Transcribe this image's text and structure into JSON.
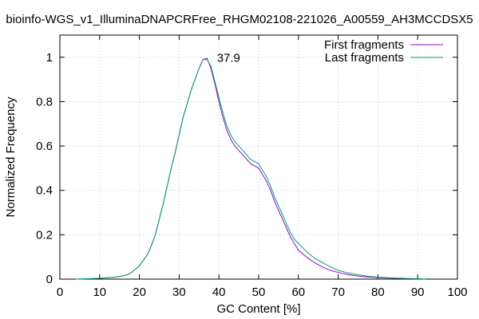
{
  "chart_data": {
    "type": "line",
    "title": "bioinfo-WGS_v1_IlluminaDNAPCRFree_RHGM02108-221026_A00559_AH3MCCDSX5",
    "xlabel": "GC Content [%]",
    "ylabel": "Normalized Frequency",
    "xlim": [
      0,
      100
    ],
    "ylim": [
      0,
      1.1
    ],
    "xticks": [
      0,
      10,
      20,
      30,
      40,
      50,
      60,
      70,
      80,
      90,
      100
    ],
    "yticks": [
      0,
      0.2,
      0.4,
      0.6,
      0.8,
      1
    ],
    "ytick_labels": [
      "0",
      "0.2",
      "0.4",
      "0.6",
      "0.8",
      "1"
    ],
    "grid": true,
    "legend_position": "top-right",
    "annotations": [
      {
        "text": "37.9",
        "x": 39.5,
        "y": 0.99
      }
    ],
    "series": [
      {
        "name": "First fragments",
        "color": "#9400d3",
        "x": [
          4,
          8,
          10,
          12,
          14,
          16,
          17,
          18,
          19,
          20,
          21,
          22,
          23,
          24,
          25,
          26,
          27,
          28,
          29,
          30,
          31,
          32,
          33,
          34,
          35,
          36,
          37,
          38,
          39,
          40,
          41,
          42,
          43,
          44,
          45,
          46,
          47,
          48,
          49,
          50,
          51,
          52,
          53,
          54,
          55,
          56,
          57,
          58,
          59,
          60,
          62,
          64,
          66,
          68,
          70,
          72,
          74,
          76,
          78,
          80,
          82,
          84,
          86,
          88,
          90,
          92
        ],
        "y": [
          0,
          0.002,
          0.004,
          0.006,
          0.009,
          0.015,
          0.02,
          0.03,
          0.045,
          0.06,
          0.085,
          0.11,
          0.15,
          0.2,
          0.27,
          0.34,
          0.42,
          0.5,
          0.57,
          0.65,
          0.73,
          0.79,
          0.85,
          0.9,
          0.95,
          0.99,
          0.995,
          0.95,
          0.88,
          0.8,
          0.73,
          0.67,
          0.63,
          0.6,
          0.58,
          0.56,
          0.54,
          0.52,
          0.51,
          0.5,
          0.47,
          0.44,
          0.4,
          0.35,
          0.31,
          0.27,
          0.23,
          0.19,
          0.16,
          0.13,
          0.1,
          0.075,
          0.055,
          0.04,
          0.03,
          0.022,
          0.016,
          0.012,
          0.009,
          0.007,
          0.005,
          0.004,
          0.003,
          0.002,
          0.001,
          0
        ]
      },
      {
        "name": "Last fragments",
        "color": "#009e73",
        "x": [
          4,
          8,
          10,
          12,
          14,
          16,
          17,
          18,
          19,
          20,
          21,
          22,
          23,
          24,
          25,
          26,
          27,
          28,
          29,
          30,
          31,
          32,
          33,
          34,
          35,
          36,
          37,
          38,
          39,
          40,
          41,
          42,
          43,
          44,
          45,
          46,
          47,
          48,
          49,
          50,
          51,
          52,
          53,
          54,
          55,
          56,
          57,
          58,
          59,
          60,
          62,
          64,
          66,
          68,
          70,
          72,
          74,
          76,
          78,
          80,
          82,
          84,
          86,
          88,
          90,
          92
        ],
        "y": [
          0,
          0.002,
          0.004,
          0.006,
          0.009,
          0.015,
          0.02,
          0.03,
          0.045,
          0.06,
          0.085,
          0.11,
          0.15,
          0.2,
          0.27,
          0.34,
          0.42,
          0.5,
          0.57,
          0.65,
          0.73,
          0.79,
          0.85,
          0.9,
          0.95,
          0.99,
          0.99,
          0.96,
          0.89,
          0.82,
          0.75,
          0.69,
          0.65,
          0.62,
          0.6,
          0.58,
          0.56,
          0.54,
          0.53,
          0.52,
          0.49,
          0.46,
          0.42,
          0.37,
          0.33,
          0.29,
          0.25,
          0.21,
          0.18,
          0.16,
          0.125,
          0.095,
          0.075,
          0.055,
          0.04,
          0.03,
          0.023,
          0.017,
          0.012,
          0.009,
          0.007,
          0.005,
          0.004,
          0.003,
          0.002,
          0.001
        ]
      }
    ]
  }
}
